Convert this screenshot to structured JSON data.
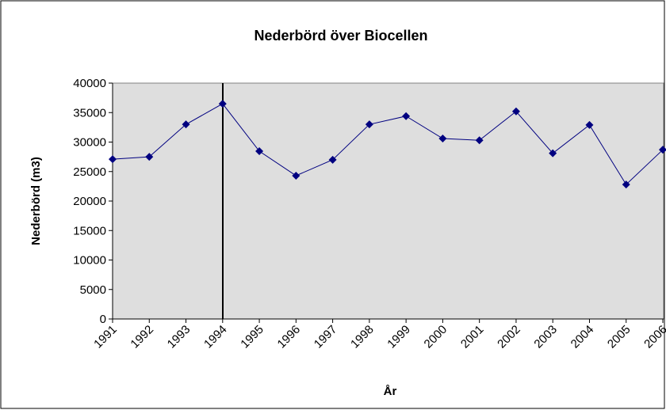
{
  "chart_data": {
    "type": "line",
    "title": "Nederbörd över Biocellen",
    "x_label": "År",
    "y_label": "Nederbörd (m3)",
    "categories": [
      "1991",
      "1992",
      "1993",
      "1994",
      "1995",
      "1996",
      "1997",
      "1998",
      "1999",
      "2000",
      "2001",
      "2002",
      "2003",
      "2004",
      "2005",
      "2006"
    ],
    "series": [
      {
        "name": "Nederbörd",
        "color": "#000080",
        "values": [
          27100,
          27500,
          33000,
          36500,
          28450,
          24300,
          27000,
          33000,
          34400,
          30600,
          30300,
          35200,
          28100,
          32900,
          22800,
          28700
        ]
      }
    ],
    "ylim": [
      0,
      40000
    ],
    "yticks": [
      0,
      5000,
      10000,
      15000,
      20000,
      25000,
      30000,
      35000,
      40000
    ],
    "grid": false
  }
}
